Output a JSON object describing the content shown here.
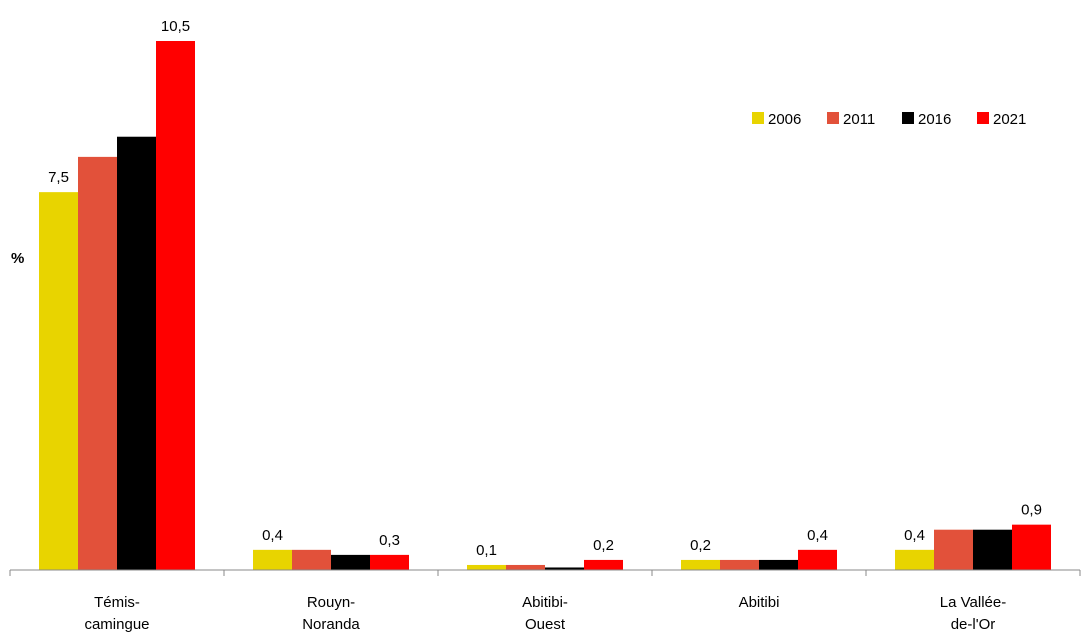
{
  "chart_data": {
    "type": "bar",
    "ylabel": "%",
    "ylim": [
      0,
      11
    ],
    "grid": false,
    "legend_position": "top-right",
    "categories": [
      [
        "Témis-",
        "camingue"
      ],
      [
        "Rouyn-",
        "Noranda"
      ],
      [
        "Abitibi-",
        "Ouest"
      ],
      [
        "Abitibi"
      ],
      [
        "La Vallée-",
        "de-l'Or"
      ]
    ],
    "series": [
      {
        "name": "2006",
        "color": "#E8D400",
        "values": [
          7.5,
          0.4,
          0.1,
          0.2,
          0.4
        ]
      },
      {
        "name": "2011",
        "color": "#E2513A",
        "values": [
          8.2,
          0.4,
          0.1,
          0.2,
          0.8
        ]
      },
      {
        "name": "2016",
        "color": "#000000",
        "values": [
          8.6,
          0.3,
          0.05,
          0.2,
          0.8
        ]
      },
      {
        "name": "2021",
        "color": "#FF0000",
        "values": [
          10.5,
          0.3,
          0.2,
          0.4,
          0.9
        ]
      }
    ],
    "data_labels": [
      {
        "category": 0,
        "series": 0,
        "text": "7,5"
      },
      {
        "category": 0,
        "series": 3,
        "text": "10,5"
      },
      {
        "category": 1,
        "series": 0,
        "text": "0,4"
      },
      {
        "category": 1,
        "series": 3,
        "text": "0,3"
      },
      {
        "category": 2,
        "series": 0,
        "text": "0,1"
      },
      {
        "category": 2,
        "series": 3,
        "text": "0,2"
      },
      {
        "category": 3,
        "series": 0,
        "text": "0,2"
      },
      {
        "category": 3,
        "series": 3,
        "text": "0,4"
      },
      {
        "category": 4,
        "series": 0,
        "text": "0,4"
      },
      {
        "category": 4,
        "series": 3,
        "text": "0,9"
      }
    ]
  }
}
